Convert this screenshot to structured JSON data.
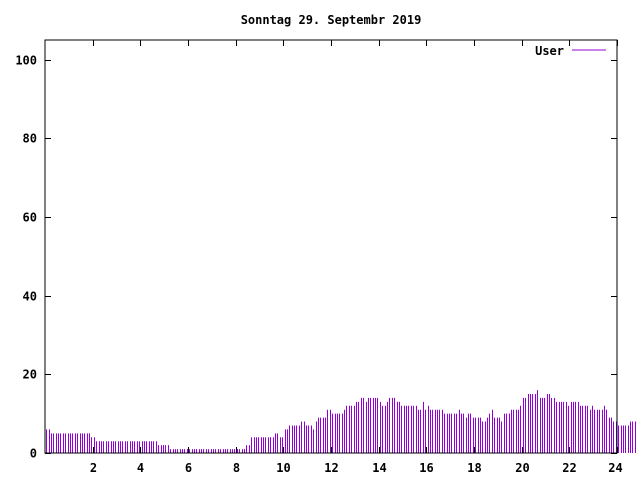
{
  "chart_data": {
    "type": "bar",
    "title": "Sonntag 29. Septembr 2019",
    "xlabel": "",
    "ylabel": "",
    "xlim": [
      0,
      24
    ],
    "ylim": [
      0,
      105
    ],
    "x_ticks": [
      2,
      4,
      6,
      8,
      10,
      12,
      14,
      16,
      18,
      20,
      22,
      24
    ],
    "x_tick_labels": [
      "2",
      "4",
      "6",
      "8",
      "10",
      "12",
      "14",
      "16",
      "18",
      "20",
      "22",
      "24"
    ],
    "y_ticks": [
      0,
      20,
      40,
      60,
      80,
      100
    ],
    "y_tick_labels": [
      "0",
      "20",
      "40",
      "60",
      "80",
      "100"
    ],
    "grid": false,
    "legend_position": "top-right",
    "series": [
      {
        "name": "User",
        "color": "#9400d3",
        "interval_hours": 0.1,
        "values": [
          6,
          6,
          5,
          5,
          5,
          5,
          5,
          5,
          5,
          5,
          5,
          5,
          5,
          5,
          5,
          5,
          5,
          5,
          5,
          4,
          4,
          3,
          3,
          3,
          3,
          3,
          3,
          3,
          3,
          3,
          3,
          3,
          3,
          3,
          3,
          3,
          3,
          3,
          3,
          3,
          3,
          3,
          3,
          3,
          3,
          3,
          3,
          2,
          2,
          2,
          2,
          2,
          1,
          1,
          1,
          1,
          1,
          1,
          1,
          1,
          1,
          1,
          1,
          1,
          1,
          1,
          1,
          1,
          1,
          1,
          1,
          1,
          1,
          1,
          1,
          1,
          1,
          1,
          1,
          1,
          1,
          1,
          1,
          1,
          2,
          2,
          4,
          4,
          4,
          4,
          4,
          4,
          4,
          4,
          4,
          4,
          5,
          5,
          4,
          4,
          6,
          6,
          7,
          7,
          7,
          7,
          7,
          8,
          8,
          7,
          7,
          7,
          6,
          8,
          9,
          9,
          9,
          9,
          11,
          11,
          10,
          10,
          10,
          10,
          10,
          11,
          12,
          12,
          12,
          12,
          13,
          13,
          14,
          14,
          13,
          14,
          14,
          14,
          14,
          14,
          13,
          12,
          12,
          13,
          14,
          14,
          14,
          13,
          13,
          12,
          12,
          12,
          12,
          12,
          12,
          12,
          11,
          11,
          13,
          11,
          12,
          11,
          11,
          11,
          11,
          11,
          11,
          10,
          10,
          10,
          10,
          10,
          10,
          11,
          10,
          10,
          9,
          10,
          10,
          9,
          9,
          9,
          9,
          8,
          8,
          9,
          10,
          11,
          9,
          9,
          9,
          8,
          10,
          10,
          10,
          11,
          11,
          11,
          11,
          12,
          14,
          14,
          15,
          15,
          15,
          15,
          16,
          14,
          14,
          14,
          15,
          15,
          14,
          14,
          13,
          13,
          13,
          13,
          13,
          12,
          13,
          13,
          13,
          13,
          12,
          12,
          12,
          12,
          11,
          12,
          11,
          11,
          11,
          11,
          12,
          11,
          9,
          9,
          8,
          8,
          7,
          7,
          7,
          7,
          7,
          8,
          8,
          8
        ]
      }
    ]
  }
}
